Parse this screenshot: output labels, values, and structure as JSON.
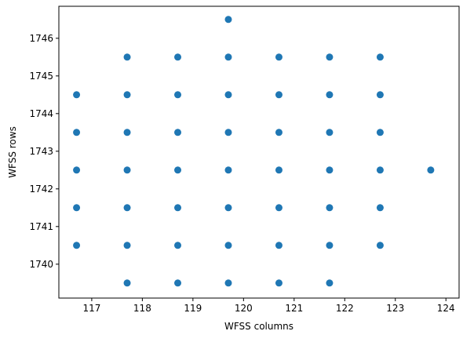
{
  "chart_data": {
    "type": "scatter",
    "x_label": "WFSS columns",
    "y_label": "WFSS rows",
    "color": "#1f77b4",
    "x": [
      116.7,
      116.7,
      116.7,
      116.7,
      116.7,
      117.7,
      117.7,
      117.7,
      117.7,
      117.7,
      117.7,
      117.7,
      118.7,
      118.7,
      118.7,
      118.7,
      118.7,
      118.7,
      118.7,
      119.7,
      119.7,
      119.7,
      119.7,
      119.7,
      119.7,
      119.7,
      119.7,
      120.7,
      120.7,
      120.7,
      120.7,
      120.7,
      120.7,
      120.7,
      121.7,
      121.7,
      121.7,
      121.7,
      121.7,
      121.7,
      121.7,
      122.7,
      122.7,
      122.7,
      122.7,
      122.7,
      122.7,
      123.7
    ],
    "y": [
      1740.5,
      1741.5,
      1742.5,
      1743.5,
      1744.5,
      1739.5,
      1740.5,
      1741.5,
      1742.5,
      1743.5,
      1744.5,
      1745.5,
      1739.5,
      1740.5,
      1741.5,
      1742.5,
      1743.5,
      1744.5,
      1745.5,
      1739.5,
      1740.5,
      1741.5,
      1742.5,
      1743.5,
      1744.5,
      1745.5,
      1746.5,
      1739.5,
      1740.5,
      1741.5,
      1742.5,
      1743.5,
      1744.5,
      1745.5,
      1739.5,
      1740.5,
      1741.5,
      1742.5,
      1743.5,
      1744.5,
      1745.5,
      1740.5,
      1741.5,
      1742.5,
      1743.5,
      1744.5,
      1745.5,
      1742.5
    ],
    "xlim": [
      116.35,
      124.26
    ],
    "xticks": [
      117,
      118,
      119,
      120,
      121,
      122,
      123,
      124
    ],
    "ylim": [
      1739.1,
      1746.85
    ],
    "yticks": [
      1740,
      1741,
      1742,
      1743,
      1744,
      1745,
      1746
    ]
  }
}
